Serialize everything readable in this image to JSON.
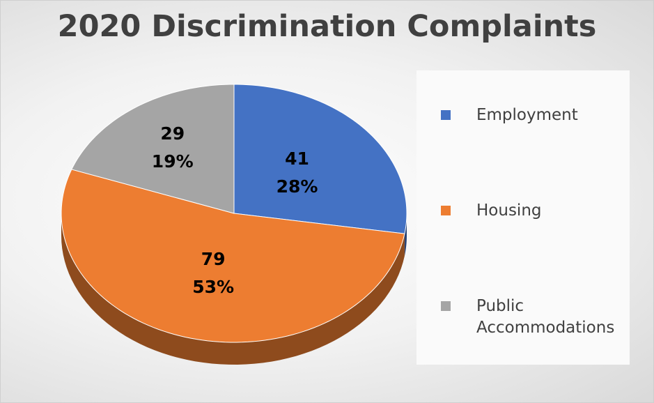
{
  "chart_data": {
    "type": "pie",
    "title": "2020 Discrimination Complaints",
    "categories": [
      "Employment",
      "Housing",
      "Public Accommodations"
    ],
    "values": [
      41,
      79,
      29
    ],
    "percentages": [
      28,
      53,
      19
    ],
    "percentage_labels": [
      "28%",
      "53%",
      "19%"
    ],
    "colors": [
      "#4472c4",
      "#ed7d31",
      "#a5a5a5"
    ],
    "legend": "right"
  }
}
